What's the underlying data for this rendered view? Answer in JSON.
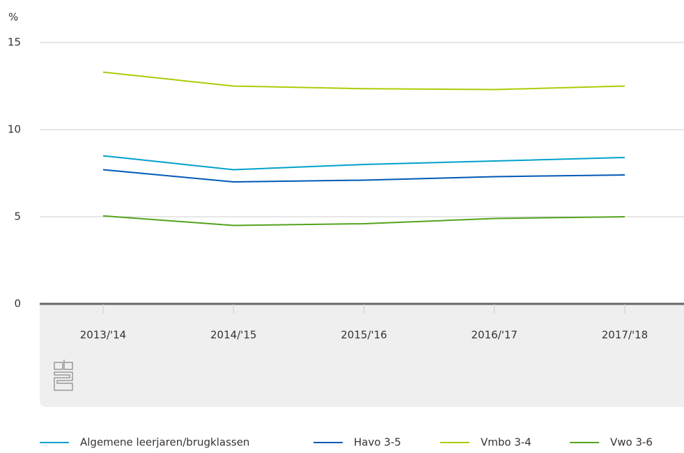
{
  "chart_data": {
    "type": "line",
    "y_label": "%",
    "categories": [
      "2013/'14",
      "2014/'15",
      "2015/'16",
      "2016/'17",
      "2017/'18"
    ],
    "series": [
      {
        "name": "Algemene leerjaren/brugklassen",
        "color": "#00a1cd",
        "values": [
          8.5,
          7.7,
          8.0,
          8.2,
          8.4
        ]
      },
      {
        "name": "Havo 3-5",
        "color": "#0058b8",
        "values": [
          7.7,
          7.0,
          7.1,
          7.3,
          7.4
        ]
      },
      {
        "name": "Vmbo 3-4",
        "color": "#afcb05",
        "values": [
          13.3,
          12.5,
          12.35,
          12.3,
          12.5
        ]
      },
      {
        "name": "Vwo 3-6",
        "color": "#53a31d",
        "values": [
          5.05,
          4.5,
          4.6,
          4.9,
          5.0
        ]
      }
    ],
    "ylim": [
      0,
      15
    ],
    "yticks": [
      0,
      5,
      10,
      15
    ],
    "grid": true
  }
}
